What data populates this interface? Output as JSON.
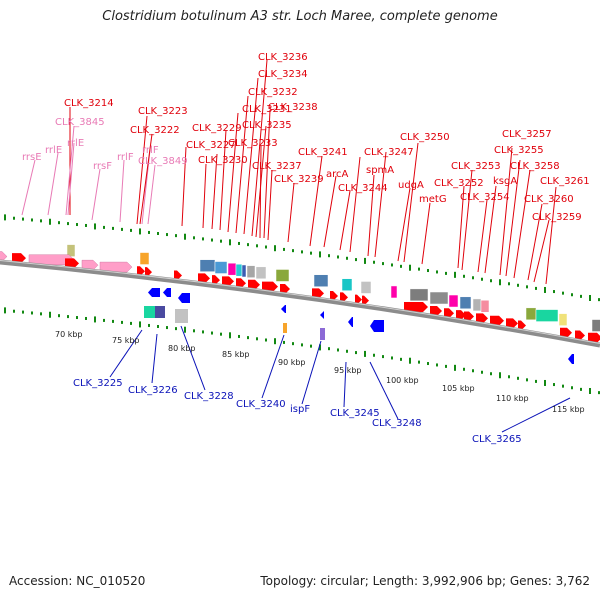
{
  "title": "Clostridium botulinum A3 str. Loch Maree, complete genome",
  "accession": "Accession: NC_010520",
  "summary": "Topology: circular; Length: 3,992,906 bp; Genes: 3,762",
  "colors": {
    "red_label": "#e0000b",
    "pink_label": "#e87ab5",
    "blue_label": "#0a12b8",
    "cds_red": "#ff0000",
    "rna_pink": "#ff9ec8",
    "strand_blue": "#0000ff",
    "tick_green": "#118811"
  },
  "scale": {
    "ticks": [
      {
        "label": "70 kbp"
      },
      {
        "label": "75 kbp"
      },
      {
        "label": "80 kbp"
      },
      {
        "label": "85 kbp"
      },
      {
        "label": "90 kbp"
      },
      {
        "label": "95 kbp"
      },
      {
        "label": "100 kbp"
      },
      {
        "label": "105 kbp"
      },
      {
        "label": "110 kbp"
      },
      {
        "label": "115 kbp"
      }
    ]
  },
  "top_labels": [
    {
      "text": "CLK_3236",
      "type": "red"
    },
    {
      "text": "CLK_3234",
      "type": "red"
    },
    {
      "text": "CLK_3232",
      "type": "red"
    },
    {
      "text": "CLK_3214",
      "type": "red"
    },
    {
      "text": "CLK_3223",
      "type": "red"
    },
    {
      "text": "CLK_3231",
      "type": "red"
    },
    {
      "text": "CLK_3238",
      "type": "red"
    },
    {
      "text": "CLK_3845",
      "type": "pink"
    },
    {
      "text": "CLK_3222",
      "type": "red"
    },
    {
      "text": "CLK_3229",
      "type": "red"
    },
    {
      "text": "CLK_3235",
      "type": "red"
    },
    {
      "text": "rrlE",
      "type": "pink"
    },
    {
      "text": "rrlE",
      "type": "pink"
    },
    {
      "text": "CLK_3227",
      "type": "red"
    },
    {
      "text": "CLK_3233",
      "type": "red"
    },
    {
      "text": "CLK_3250",
      "type": "red"
    },
    {
      "text": "CLK_3257",
      "type": "red"
    },
    {
      "text": "rrsE",
      "type": "pink"
    },
    {
      "text": "rrlF",
      "type": "pink"
    },
    {
      "text": "rrlF",
      "type": "pink"
    },
    {
      "text": "CLK_3849",
      "type": "pink"
    },
    {
      "text": "CLK_3230",
      "type": "red"
    },
    {
      "text": "CLK_3241",
      "type": "red"
    },
    {
      "text": "CLK_3247",
      "type": "red"
    },
    {
      "text": "CLK_3255",
      "type": "red"
    },
    {
      "text": "rrsF",
      "type": "pink"
    },
    {
      "text": "CLK_3237",
      "type": "red"
    },
    {
      "text": "CLK_3253",
      "type": "red"
    },
    {
      "text": "CLK_3258",
      "type": "red"
    },
    {
      "text": "CLK_3239",
      "type": "red"
    },
    {
      "text": "arcA",
      "type": "red"
    },
    {
      "text": "spmA",
      "type": "red"
    },
    {
      "text": "CLK_3261",
      "type": "red"
    },
    {
      "text": "udgA",
      "type": "red"
    },
    {
      "text": "CLK_3252",
      "type": "red"
    },
    {
      "text": "ksgA",
      "type": "red"
    },
    {
      "text": "CLK_3244",
      "type": "red"
    },
    {
      "text": "CLK_3254",
      "type": "red"
    },
    {
      "text": "metG",
      "type": "red"
    },
    {
      "text": "CLK_3260",
      "type": "red"
    },
    {
      "text": "CLK_3259",
      "type": "red"
    }
  ],
  "bottom_labels": [
    {
      "text": "CLK_3225"
    },
    {
      "text": "CLK_3226"
    },
    {
      "text": "CLK_3228"
    },
    {
      "text": "CLK_3240"
    },
    {
      "text": "ispF"
    },
    {
      "text": "CLK_3245"
    },
    {
      "text": "CLK_3248"
    },
    {
      "text": "CLK_3265"
    }
  ]
}
